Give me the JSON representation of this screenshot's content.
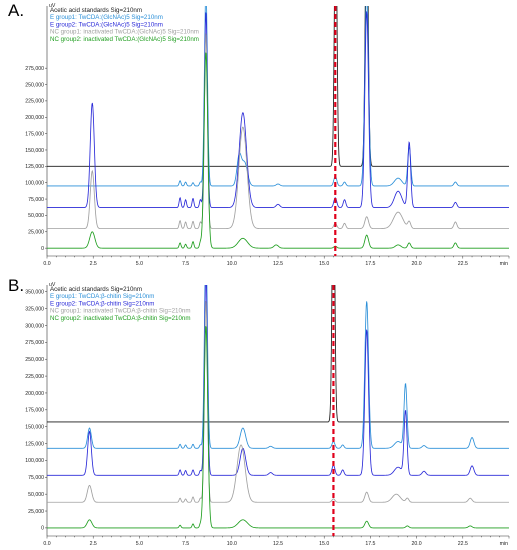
{
  "panels": [
    {
      "letter": "A.",
      "chart_data": {
        "type": "line",
        "title": "",
        "xlabel": "min",
        "ylabel": "uV",
        "xlim": [
          0.0,
          25.0
        ],
        "ylim": [
          -12000,
          370000
        ],
        "x_ticks": [
          0.0,
          2.5,
          5.0,
          7.5,
          10.0,
          12.5,
          15.0,
          17.5,
          20.0,
          22.5
        ],
        "x_tick_labels": [
          "0.0",
          "2.5",
          "5.0",
          "7.5",
          "10.0",
          "12.5",
          "15.0",
          "17.5",
          "20.0",
          "22.5"
        ],
        "y_ticks": [
          0,
          25000,
          50000,
          75000,
          100000,
          125000,
          150000,
          175000,
          200000,
          225000,
          250000,
          275000
        ],
        "y_tick_labels": [
          "0",
          "25,000",
          "50,000",
          "75,000",
          "100,000",
          "125,000",
          "150,000",
          "175,000",
          "200,000",
          "225,000",
          "250,000",
          "275,000"
        ],
        "marker_line_x": 15.6,
        "marker_line_color": "#e0001b",
        "grid": false,
        "legend_position": "top-left",
        "series": [
          {
            "name": "Acetic acid standards  Sig=210nm",
            "color": "#1a1a1a",
            "baseline": 125000,
            "peaks": [
              {
                "x": 15.62,
                "h": 400000,
                "w": 0.07
              },
              {
                "x": 17.3,
                "h": 400000,
                "w": 0.08
              }
            ]
          },
          {
            "name": "E group1:  TwCDA:(GlcNAc)5  Sig=210nm",
            "color": "#2a8fd8",
            "baseline": 95000,
            "peaks": [
              {
                "x": 7.2,
                "h": 8000,
                "w": 0.05
              },
              {
                "x": 7.5,
                "h": 6000,
                "w": 0.05
              },
              {
                "x": 7.9,
                "h": 5000,
                "w": 0.05
              },
              {
                "x": 8.3,
                "h": 6000,
                "w": 0.05
              },
              {
                "x": 8.6,
                "h": 300000,
                "w": 0.08
              },
              {
                "x": 10.4,
                "h": 45000,
                "w": 0.12
              },
              {
                "x": 10.7,
                "h": 35000,
                "w": 0.15
              },
              {
                "x": 12.5,
                "h": 3000,
                "w": 0.1
              },
              {
                "x": 15.6,
                "h": 15000,
                "w": 0.08
              },
              {
                "x": 16.1,
                "h": 6000,
                "w": 0.07
              },
              {
                "x": 17.3,
                "h": 300000,
                "w": 0.1
              },
              {
                "x": 19.0,
                "h": 12000,
                "w": 0.2
              },
              {
                "x": 19.6,
                "h": 60000,
                "w": 0.08
              },
              {
                "x": 22.1,
                "h": 6000,
                "w": 0.08
              }
            ]
          },
          {
            "name": "E group2:  TwCDA:(GlcNAc)5  Sig=210nm",
            "color": "#2a2ad8",
            "baseline": 62000,
            "peaks": [
              {
                "x": 2.45,
                "h": 160000,
                "w": 0.11
              },
              {
                "x": 7.2,
                "h": 15000,
                "w": 0.05
              },
              {
                "x": 7.5,
                "h": 12000,
                "w": 0.05
              },
              {
                "x": 7.9,
                "h": 14000,
                "w": 0.05
              },
              {
                "x": 8.3,
                "h": 12000,
                "w": 0.05
              },
              {
                "x": 8.6,
                "h": 300000,
                "w": 0.08
              },
              {
                "x": 10.6,
                "h": 145000,
                "w": 0.2
              },
              {
                "x": 12.5,
                "h": 5000,
                "w": 0.1
              },
              {
                "x": 15.6,
                "h": 15000,
                "w": 0.08
              },
              {
                "x": 16.1,
                "h": 12000,
                "w": 0.07
              },
              {
                "x": 17.3,
                "h": 300000,
                "w": 0.1
              },
              {
                "x": 19.0,
                "h": 25000,
                "w": 0.2
              },
              {
                "x": 19.6,
                "h": 100000,
                "w": 0.08
              },
              {
                "x": 22.1,
                "h": 8000,
                "w": 0.08
              }
            ]
          },
          {
            "name": "NC group1:  inactivated TwCDA:(GlcNAc)5 Sig=210nm",
            "color": "#a0a0a0",
            "baseline": 30000,
            "peaks": [
              {
                "x": 2.45,
                "h": 88000,
                "w": 0.11
              },
              {
                "x": 7.2,
                "h": 12000,
                "w": 0.05
              },
              {
                "x": 7.5,
                "h": 10000,
                "w": 0.05
              },
              {
                "x": 7.9,
                "h": 11000,
                "w": 0.05
              },
              {
                "x": 8.3,
                "h": 10000,
                "w": 0.05
              },
              {
                "x": 8.6,
                "h": 300000,
                "w": 0.08
              },
              {
                "x": 10.6,
                "h": 155000,
                "w": 0.22
              },
              {
                "x": 15.6,
                "h": 8000,
                "w": 0.08
              },
              {
                "x": 16.1,
                "h": 8000,
                "w": 0.07
              },
              {
                "x": 17.3,
                "h": 18000,
                "w": 0.1
              },
              {
                "x": 19.0,
                "h": 25000,
                "w": 0.25
              },
              {
                "x": 19.6,
                "h": 10000,
                "w": 0.08
              },
              {
                "x": 22.1,
                "h": 10000,
                "w": 0.08
              }
            ]
          },
          {
            "name": "NC group2:  inactivated TwCDA:(GlcNAc)5 Sig=210nm",
            "color": "#1f9e1f",
            "baseline": 0,
            "peaks": [
              {
                "x": 2.45,
                "h": 25000,
                "w": 0.14
              },
              {
                "x": 7.2,
                "h": 8000,
                "w": 0.05
              },
              {
                "x": 7.5,
                "h": 6000,
                "w": 0.05
              },
              {
                "x": 7.9,
                "h": 10000,
                "w": 0.05
              },
              {
                "x": 8.3,
                "h": 8000,
                "w": 0.05
              },
              {
                "x": 8.6,
                "h": 300000,
                "w": 0.1
              },
              {
                "x": 10.6,
                "h": 15000,
                "w": 0.25
              },
              {
                "x": 12.4,
                "h": 5000,
                "w": 0.12
              },
              {
                "x": 15.6,
                "h": 3000,
                "w": 0.08
              },
              {
                "x": 17.3,
                "h": 20000,
                "w": 0.1
              },
              {
                "x": 19.0,
                "h": 5000,
                "w": 0.15
              },
              {
                "x": 19.6,
                "h": 8000,
                "w": 0.08
              },
              {
                "x": 22.1,
                "h": 8000,
                "w": 0.08
              }
            ]
          }
        ]
      }
    },
    {
      "letter": "B.",
      "chart_data": {
        "type": "line",
        "title": "",
        "xlabel": "min",
        "ylabel": "uV",
        "xlim": [
          0.0,
          25.0
        ],
        "ylim": [
          -12000,
          360000
        ],
        "x_ticks": [
          0.0,
          2.5,
          5.0,
          7.5,
          10.0,
          12.5,
          15.0,
          17.5,
          20.0,
          22.5
        ],
        "x_tick_labels": [
          "0.0",
          "2.5",
          "5.0",
          "7.5",
          "10.0",
          "12.5",
          "15.0",
          "17.5",
          "20.0",
          "22.5"
        ],
        "y_ticks": [
          0,
          25000,
          50000,
          75000,
          100000,
          125000,
          150000,
          175000,
          200000,
          225000,
          250000,
          275000,
          300000,
          325000,
          350000
        ],
        "y_tick_labels": [
          "0",
          "25,000",
          "50,000",
          "75,000",
          "100,000",
          "125,000",
          "150,000",
          "175,000",
          "200,000",
          "225,000",
          "250,000",
          "275,000",
          "300,000",
          "325,000",
          "350,000"
        ],
        "marker_line_x": 15.5,
        "marker_line_color": "#e0001b",
        "grid": false,
        "legend_position": "top-left",
        "series": [
          {
            "name": "Acetic acid standards  Sig=210nm",
            "color": "#1a1a1a",
            "baseline": 157000,
            "peaks": [
              {
                "x": 15.5,
                "h": 400000,
                "w": 0.07
              }
            ]
          },
          {
            "name": "E group1:  TwCDA:β-chitin Sig=210nm",
            "color": "#2a8fd8",
            "baseline": 118000,
            "peaks": [
              {
                "x": 2.3,
                "h": 30000,
                "w": 0.1
              },
              {
                "x": 7.2,
                "h": 6000,
                "w": 0.05
              },
              {
                "x": 7.5,
                "h": 5000,
                "w": 0.05
              },
              {
                "x": 7.9,
                "h": 6000,
                "w": 0.05
              },
              {
                "x": 8.3,
                "h": 5000,
                "w": 0.05
              },
              {
                "x": 8.6,
                "h": 300000,
                "w": 0.08
              },
              {
                "x": 10.6,
                "h": 30000,
                "w": 0.15
              },
              {
                "x": 12.1,
                "h": 3000,
                "w": 0.1
              },
              {
                "x": 15.5,
                "h": 10000,
                "w": 0.08
              },
              {
                "x": 16.0,
                "h": 5000,
                "w": 0.07
              },
              {
                "x": 17.3,
                "h": 218000,
                "w": 0.1
              },
              {
                "x": 19.0,
                "h": 10000,
                "w": 0.2
              },
              {
                "x": 19.4,
                "h": 95000,
                "w": 0.08
              },
              {
                "x": 20.4,
                "h": 4000,
                "w": 0.1
              },
              {
                "x": 23.0,
                "h": 16000,
                "w": 0.1
              }
            ]
          },
          {
            "name": "E group2:  TwCDA:β-chitin Sig=210nm",
            "color": "#2a2ad8",
            "baseline": 78000,
            "peaks": [
              {
                "x": 2.3,
                "h": 65000,
                "w": 0.1
              },
              {
                "x": 7.2,
                "h": 8000,
                "w": 0.05
              },
              {
                "x": 7.5,
                "h": 7000,
                "w": 0.05
              },
              {
                "x": 7.9,
                "h": 8000,
                "w": 0.05
              },
              {
                "x": 8.3,
                "h": 7000,
                "w": 0.05
              },
              {
                "x": 8.6,
                "h": 300000,
                "w": 0.08
              },
              {
                "x": 10.6,
                "h": 40000,
                "w": 0.15
              },
              {
                "x": 12.1,
                "h": 4000,
                "w": 0.1
              },
              {
                "x": 15.5,
                "h": 15000,
                "w": 0.08
              },
              {
                "x": 16.0,
                "h": 8000,
                "w": 0.07
              },
              {
                "x": 17.3,
                "h": 216000,
                "w": 0.1
              },
              {
                "x": 19.0,
                "h": 12000,
                "w": 0.2
              },
              {
                "x": 19.4,
                "h": 95000,
                "w": 0.08
              },
              {
                "x": 20.4,
                "h": 6000,
                "w": 0.1
              },
              {
                "x": 23.0,
                "h": 14000,
                "w": 0.1
              }
            ]
          },
          {
            "name": "NC group1:  inactivated TwCDA:β-chitin Sig=210nm",
            "color": "#a0a0a0",
            "baseline": 38000,
            "peaks": [
              {
                "x": 2.3,
                "h": 25000,
                "w": 0.12
              },
              {
                "x": 7.2,
                "h": 6000,
                "w": 0.05
              },
              {
                "x": 7.5,
                "h": 5000,
                "w": 0.05
              },
              {
                "x": 7.9,
                "h": 8000,
                "w": 0.05
              },
              {
                "x": 8.3,
                "h": 6000,
                "w": 0.05
              },
              {
                "x": 8.6,
                "h": 300000,
                "w": 0.08
              },
              {
                "x": 10.5,
                "h": 85000,
                "w": 0.22
              },
              {
                "x": 15.5,
                "h": 5000,
                "w": 0.08
              },
              {
                "x": 17.3,
                "h": 15000,
                "w": 0.1
              },
              {
                "x": 18.9,
                "h": 12000,
                "w": 0.22
              },
              {
                "x": 19.5,
                "h": 6000,
                "w": 0.08
              },
              {
                "x": 22.9,
                "h": 6000,
                "w": 0.1
              }
            ]
          },
          {
            "name": "NC group2:  inactivated TwCDA:β-chitin Sig=210nm",
            "color": "#1f9e1f",
            "baseline": 0,
            "peaks": [
              {
                "x": 2.3,
                "h": 12000,
                "w": 0.13
              },
              {
                "x": 7.2,
                "h": 4000,
                "w": 0.05
              },
              {
                "x": 7.9,
                "h": 6000,
                "w": 0.05
              },
              {
                "x": 8.3,
                "h": 5000,
                "w": 0.05
              },
              {
                "x": 8.6,
                "h": 300000,
                "w": 0.1
              },
              {
                "x": 10.6,
                "h": 12000,
                "w": 0.25
              },
              {
                "x": 17.3,
                "h": 10000,
                "w": 0.1
              },
              {
                "x": 19.5,
                "h": 3000,
                "w": 0.08
              },
              {
                "x": 22.9,
                "h": 3000,
                "w": 0.1
              }
            ]
          }
        ]
      }
    }
  ]
}
